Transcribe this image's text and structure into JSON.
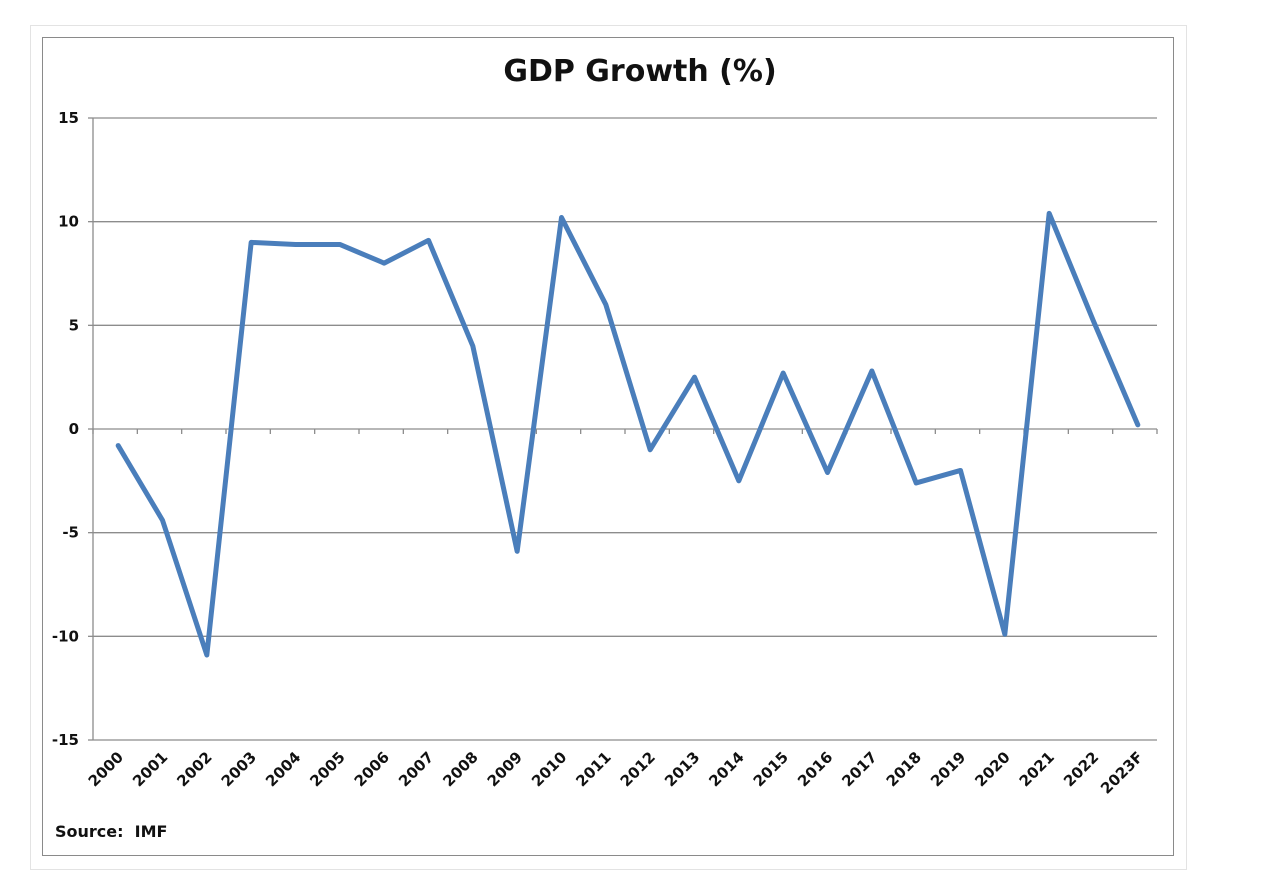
{
  "chart_data": {
    "type": "line",
    "title": "GDP Growth (%)",
    "source": "Source:  IMF",
    "categories": [
      "2000",
      "2001",
      "2002",
      "2003",
      "2004",
      "2005",
      "2006",
      "2007",
      "2008",
      "2009",
      "2010",
      "2011",
      "2012",
      "2013",
      "2014",
      "2015",
      "2016",
      "2017",
      "2018",
      "2019",
      "2020",
      "2021",
      "2022",
      "2023F"
    ],
    "series": [
      {
        "values": [
          -0.8,
          -4.4,
          -10.9,
          9.0,
          8.9,
          8.9,
          8.0,
          9.1,
          4.0,
          -5.9,
          10.2,
          6.0,
          -1.0,
          2.5,
          -2.5,
          2.7,
          -2.1,
          2.8,
          -2.6,
          -2.0,
          -9.9,
          10.4,
          5.2,
          0.2
        ],
        "color": "#4a7ebb"
      }
    ],
    "yticks": [
      15,
      10,
      5,
      0,
      -5,
      -10,
      -15
    ],
    "ylim": [
      -15,
      15
    ],
    "grid": true,
    "xlabel": "",
    "ylabel": ""
  }
}
